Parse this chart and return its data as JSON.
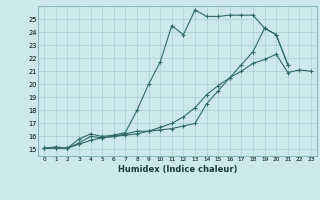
{
  "xlabel": "Humidex (Indice chaleur)",
  "bg_color": "#cce8ed",
  "grid_color": "#aacdd4",
  "line_color": "#2d6b6b",
  "xlim": [
    -0.5,
    23.5
  ],
  "ylim": [
    14.5,
    26.0
  ],
  "xticks": [
    0,
    1,
    2,
    3,
    4,
    5,
    6,
    7,
    8,
    9,
    10,
    11,
    12,
    13,
    14,
    15,
    16,
    17,
    18,
    19,
    20,
    21,
    22,
    23
  ],
  "yticks": [
    15,
    16,
    17,
    18,
    19,
    20,
    21,
    22,
    23,
    24,
    25
  ],
  "line1_x": [
    0,
    1,
    2,
    3,
    4,
    5,
    6,
    7,
    8,
    9,
    10,
    11,
    12,
    13,
    14,
    15,
    16,
    17,
    18,
    19,
    20,
    21
  ],
  "line1_y": [
    15.1,
    15.1,
    15.1,
    15.8,
    16.2,
    16.0,
    16.1,
    16.3,
    18.0,
    20.0,
    21.7,
    24.5,
    23.8,
    25.7,
    25.2,
    25.2,
    25.3,
    25.3,
    25.3,
    24.3,
    23.8,
    21.5
  ],
  "line2_x": [
    0,
    1,
    2,
    3,
    4,
    5,
    6,
    7,
    8,
    9,
    10,
    11,
    12,
    13,
    14,
    15,
    16,
    17,
    18,
    19,
    20,
    21
  ],
  "line2_y": [
    15.1,
    15.1,
    15.1,
    15.5,
    16.0,
    15.9,
    16.0,
    16.2,
    16.4,
    16.4,
    16.5,
    16.6,
    16.8,
    17.0,
    18.5,
    19.5,
    20.5,
    21.5,
    22.5,
    24.3,
    23.8,
    21.5
  ],
  "line3_x": [
    0,
    1,
    2,
    3,
    4,
    5,
    6,
    7,
    8,
    9,
    10,
    11,
    12,
    13,
    14,
    15,
    16,
    17,
    18,
    19,
    20,
    21,
    22,
    23
  ],
  "line3_y": [
    15.1,
    15.2,
    15.1,
    15.4,
    15.7,
    15.9,
    16.0,
    16.1,
    16.2,
    16.4,
    16.7,
    17.0,
    17.5,
    18.2,
    19.2,
    19.9,
    20.5,
    21.0,
    21.6,
    21.9,
    22.3,
    20.9,
    21.1,
    21.0
  ]
}
